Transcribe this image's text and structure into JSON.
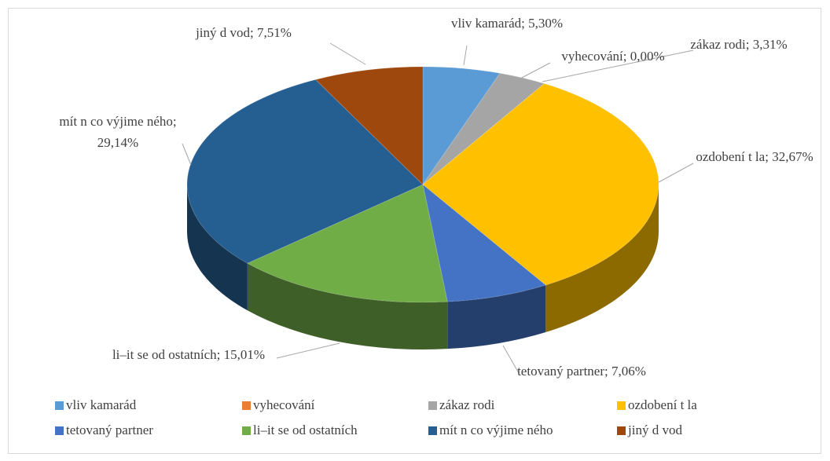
{
  "chart_data": {
    "type": "pie3d",
    "categories": [
      "vliv kamarád",
      "vyhecování",
      "zákaz rodi",
      "ozdobení t la",
      "tetovaný partner",
      "li–it se od ostatních",
      "mít n co výjime ného",
      "jiný d vod"
    ],
    "values": [
      5.3,
      0.0,
      3.31,
      32.67,
      7.06,
      15.01,
      29.14,
      7.51
    ],
    "value_labels": [
      "5,30%",
      "0,00%",
      "3,31%",
      "32,67%",
      "7,06%",
      "15,01%",
      "29,14%",
      "7,51%"
    ],
    "label_separator": "; ",
    "colors": [
      "#5b9bd5",
      "#ed7d31",
      "#a5a5a5",
      "#ffc000",
      "#4472c4",
      "#70ad47",
      "#255e91",
      "#9e480e"
    ],
    "legend": "bottom"
  }
}
